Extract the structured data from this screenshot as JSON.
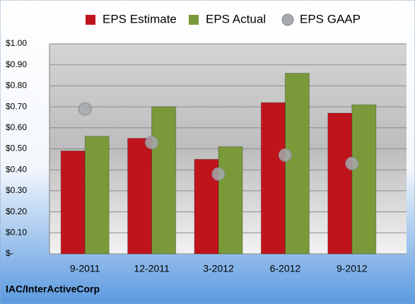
{
  "chart_data": {
    "type": "bar",
    "categories": [
      "9-2011",
      "12-2011",
      "3-2012",
      "6-2012",
      "9-2012"
    ],
    "series": [
      {
        "name": "EPS Estimate",
        "color": "#c0141c",
        "values": [
          0.49,
          0.55,
          0.45,
          0.72,
          0.67
        ]
      },
      {
        "name": "EPS Actual",
        "color": "#7a9a3a",
        "values": [
          0.56,
          0.7,
          0.51,
          0.86,
          0.71
        ]
      },
      {
        "name": "EPS GAAP",
        "color": "#a6a9ae",
        "type": "scatter",
        "values": [
          0.69,
          0.53,
          0.38,
          0.47,
          0.43
        ]
      }
    ],
    "ylim": [
      0,
      1
    ],
    "yticks": [
      {
        "value": 0,
        "label": "$-"
      },
      {
        "value": 0.1,
        "label": "$0.10"
      },
      {
        "value": 0.2,
        "label": "$0.20"
      },
      {
        "value": 0.3,
        "label": "$0.30"
      },
      {
        "value": 0.4,
        "label": "$0.40"
      },
      {
        "value": 0.5,
        "label": "$0.50"
      },
      {
        "value": 0.6,
        "label": "$0.60"
      },
      {
        "value": 0.7,
        "label": "$0.70"
      },
      {
        "value": 0.8,
        "label": "$0.80"
      },
      {
        "value": 0.9,
        "label": "$0.90"
      },
      {
        "value": 1,
        "label": "$1.00"
      }
    ],
    "grid": true,
    "legend": "top",
    "footnote": "IAC/InterActiveCorp"
  }
}
